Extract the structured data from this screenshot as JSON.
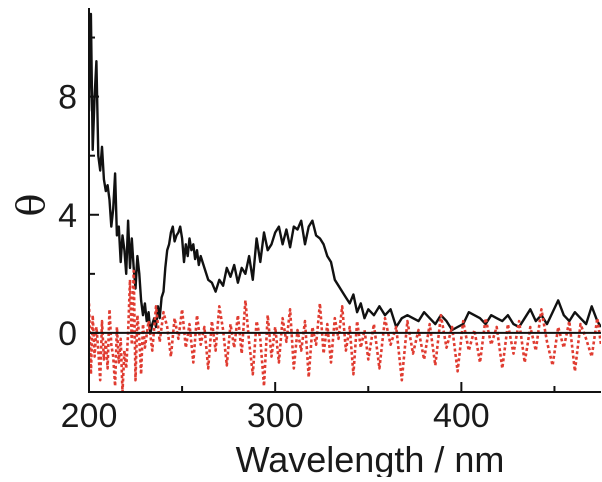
{
  "chart_data": {
    "type": "line",
    "xlabel": "Wavelength / nm",
    "ylabel": "θ",
    "xlim": [
      200,
      475
    ],
    "ylim": [
      -2,
      11
    ],
    "x_ticks": [
      200,
      300,
      400
    ],
    "x_tick_labels": [
      "200",
      "300",
      "400"
    ],
    "y_ticks": [
      0,
      4,
      8
    ],
    "y_tick_labels": [
      "0",
      "4",
      "8"
    ],
    "zero_line": true,
    "grid": false,
    "legend": "none",
    "series": [
      {
        "color": "#111111",
        "style": "solid",
        "x": [
          200,
          201,
          202,
          203,
          204,
          205,
          206,
          207,
          208,
          209,
          210,
          211,
          212,
          213,
          214,
          215,
          216,
          217,
          218,
          219,
          220,
          221,
          222,
          223,
          224,
          225,
          226,
          227,
          228,
          229,
          230,
          231,
          232,
          233,
          234,
          235,
          236,
          237,
          238,
          239,
          240,
          241,
          242,
          243,
          244,
          245,
          246,
          247,
          248,
          249,
          250,
          251,
          252,
          253,
          254,
          255,
          256,
          257,
          258,
          259,
          260,
          262,
          264,
          266,
          268,
          270,
          272,
          274,
          276,
          278,
          280,
          282,
          284,
          286,
          288,
          290,
          292,
          294,
          296,
          298,
          300,
          302,
          304,
          306,
          308,
          310,
          312,
          314,
          316,
          318,
          320,
          322,
          324,
          326,
          328,
          330,
          332,
          334,
          336,
          338,
          340,
          342,
          344,
          346,
          348,
          350,
          353,
          356,
          359,
          362,
          365,
          368,
          371,
          374,
          377,
          380,
          383,
          386,
          389,
          392,
          395,
          398,
          401,
          404,
          407,
          410,
          413,
          416,
          419,
          422,
          425,
          428,
          431,
          434,
          437,
          440,
          443,
          446,
          449,
          452,
          455,
          458,
          461,
          464,
          467,
          470,
          473,
          475
        ],
        "y": [
          7.5,
          10.8,
          6.2,
          8.0,
          9.2,
          6.0,
          5.5,
          6.3,
          5.2,
          4.8,
          5.0,
          4.5,
          3.6,
          4.2,
          5.4,
          3.3,
          3.6,
          2.4,
          3.3,
          2.8,
          2.0,
          3.8,
          2.2,
          3.2,
          2.2,
          1.5,
          2.6,
          2.0,
          1.1,
          0.6,
          1.0,
          0.4,
          0.7,
          0.0,
          0.3,
          0.5,
          0.2,
          0.9,
          0.5,
          1.2,
          1.4,
          2.2,
          2.8,
          3.0,
          3.4,
          3.6,
          3.1,
          3.3,
          3.4,
          3.6,
          3.2,
          2.4,
          3.0,
          2.6,
          3.2,
          2.8,
          3.0,
          2.5,
          2.8,
          2.3,
          2.6,
          2.2,
          1.8,
          1.7,
          1.4,
          1.8,
          1.6,
          2.2,
          1.9,
          2.3,
          1.7,
          2.2,
          2.0,
          2.6,
          1.8,
          3.2,
          2.4,
          3.4,
          2.8,
          3.0,
          3.4,
          3.6,
          3.0,
          3.5,
          2.9,
          3.6,
          3.5,
          3.8,
          3.0,
          3.6,
          3.8,
          3.3,
          3.2,
          3.0,
          2.6,
          2.4,
          1.8,
          1.6,
          1.4,
          1.2,
          1.0,
          1.3,
          0.7,
          1.0,
          0.5,
          0.8,
          0.6,
          0.9,
          0.6,
          0.8,
          0.2,
          0.5,
          0.6,
          0.5,
          0.4,
          0.7,
          0.5,
          0.3,
          0.6,
          0.4,
          0.1,
          0.2,
          0.3,
          0.7,
          0.6,
          0.5,
          0.3,
          0.6,
          0.5,
          0.4,
          0.6,
          0.3,
          0.2,
          0.5,
          0.8,
          0.4,
          0.6,
          0.3,
          0.7,
          1.1,
          0.6,
          0.4,
          0.7,
          0.5,
          0.3,
          0.9,
          0.4,
          0.2
        ]
      },
      {
        "color": "#e03c31",
        "style": "dotted",
        "x": [
          200,
          201,
          202,
          203,
          204,
          205,
          206,
          207,
          208,
          209,
          210,
          211,
          212,
          213,
          214,
          215,
          216,
          217,
          218,
          219,
          220,
          221,
          222,
          223,
          224,
          225,
          226,
          227,
          228,
          229,
          230,
          232,
          234,
          236,
          238,
          240,
          242,
          244,
          246,
          248,
          250,
          252,
          254,
          256,
          258,
          260,
          262,
          264,
          266,
          268,
          270,
          272,
          274,
          276,
          278,
          280,
          282,
          284,
          286,
          288,
          290,
          292,
          294,
          296,
          298,
          300,
          302,
          304,
          306,
          308,
          310,
          312,
          314,
          316,
          318,
          320,
          322,
          324,
          326,
          328,
          330,
          332,
          334,
          336,
          338,
          340,
          342,
          344,
          346,
          348,
          350,
          353,
          356,
          359,
          362,
          365,
          368,
          371,
          374,
          377,
          380,
          383,
          386,
          389,
          392,
          395,
          398,
          401,
          404,
          407,
          410,
          413,
          416,
          419,
          422,
          425,
          428,
          431,
          434,
          437,
          440,
          443,
          446,
          449,
          452,
          455,
          458,
          461,
          464,
          467,
          470,
          473,
          475
        ],
        "y": [
          1.0,
          -1.4,
          0.6,
          -0.8,
          0.2,
          -0.6,
          -1.6,
          0.4,
          -0.9,
          -0.3,
          -1.2,
          0.8,
          -0.4,
          -0.8,
          -1.8,
          0.2,
          -1.0,
          -0.2,
          -2.0,
          -0.6,
          -1.2,
          0.0,
          1.8,
          -0.4,
          2.1,
          -1.6,
          0.6,
          -0.2,
          -1.4,
          0.3,
          -0.5,
          0.4,
          -0.6,
          0.9,
          -0.3,
          0.7,
          0.2,
          -0.8,
          0.5,
          -0.2,
          0.8,
          -0.5,
          0.3,
          -1.0,
          0.6,
          -0.4,
          0.2,
          -1.2,
          0.4,
          -0.6,
          0.9,
          0.1,
          -1.1,
          0.3,
          -0.5,
          0.6,
          -0.7,
          1.1,
          -0.3,
          -1.4,
          0.4,
          -0.2,
          -1.8,
          0.6,
          -0.8,
          0.2,
          -1.0,
          0.5,
          -0.3,
          0.8,
          -1.2,
          0.1,
          -0.6,
          0.4,
          -1.5,
          0.2,
          -0.4,
          1.0,
          -0.7,
          0.3,
          -1.0,
          0.5,
          -0.2,
          0.9,
          -0.6,
          0.2,
          -1.4,
          0.4,
          -0.5,
          0.1,
          -0.9,
          0.3,
          -1.2,
          0.5,
          -0.4,
          0.2,
          -1.6,
          0.4,
          -0.7,
          0.1,
          -0.9,
          0.3,
          -1.1,
          0.6,
          -0.5,
          0.2,
          -1.3,
          0.4,
          -0.6,
          0.1,
          -1.0,
          0.5,
          -0.4,
          0.2,
          -1.2,
          0.3,
          -0.7,
          0.4,
          -1.0,
          0.2,
          -0.6,
          0.8,
          -0.3,
          -1.1,
          0.2,
          -0.5,
          0.4,
          -1.3,
          0.3,
          -0.2,
          -0.8,
          0.5,
          -0.4
        ]
      }
    ]
  }
}
